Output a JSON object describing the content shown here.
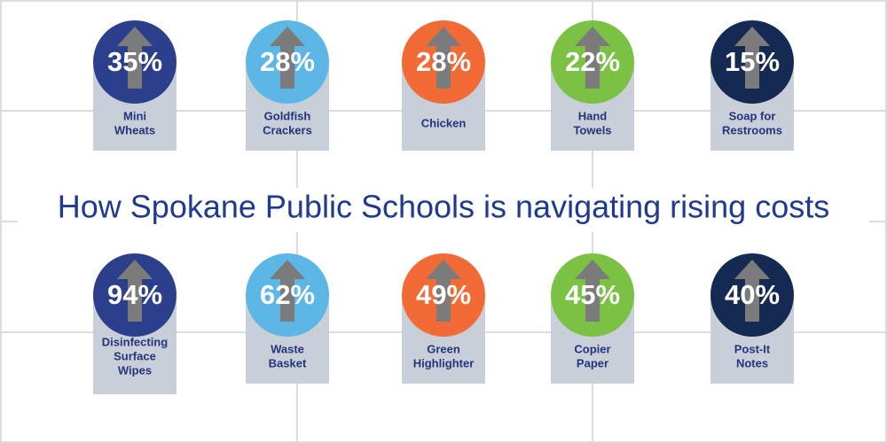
{
  "title": "How Spokane Public Schools is navigating rising costs",
  "rows": [
    [
      {
        "percent": "35%",
        "label": [
          "Mini",
          "Wheats"
        ],
        "color": "#2b3f8c"
      },
      {
        "percent": "28%",
        "label": [
          "Goldfish",
          "Crackers"
        ],
        "color": "#5db7e6"
      },
      {
        "percent": "28%",
        "label": [
          "Chicken"
        ],
        "color": "#f26a35"
      },
      {
        "percent": "22%",
        "label": [
          "Hand",
          "Towels"
        ],
        "color": "#7bc143"
      },
      {
        "percent": "15%",
        "label": [
          "Soap for",
          "Restrooms"
        ],
        "color": "#152a52"
      }
    ],
    [
      {
        "percent": "94%",
        "label": [
          "Disinfecting",
          "Surface",
          "Wipes"
        ],
        "color": "#2b3f8c"
      },
      {
        "percent": "62%",
        "label": [
          "Waste",
          "Basket"
        ],
        "color": "#5db7e6"
      },
      {
        "percent": "49%",
        "label": [
          "Green",
          "Highlighter"
        ],
        "color": "#f26a35"
      },
      {
        "percent": "45%",
        "label": [
          "Copier",
          "Paper"
        ],
        "color": "#7bc143"
      },
      {
        "percent": "40%",
        "label": [
          "Post-It",
          "Notes"
        ],
        "color": "#152a52"
      }
    ]
  ]
}
